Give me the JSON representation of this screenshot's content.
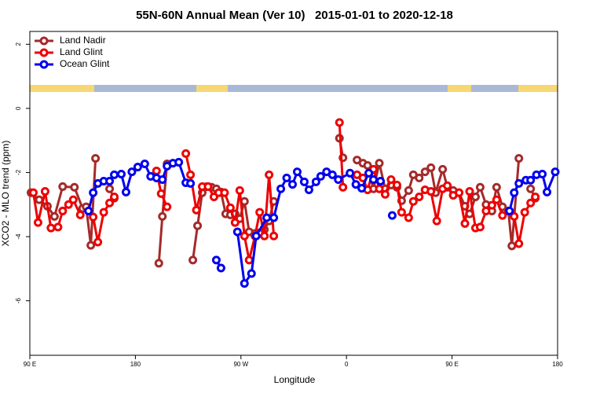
{
  "chart_data": {
    "type": "line",
    "title": "55N-60N Annual Mean (Ver 10)   2015-01-01 to 2020-12-18",
    "x_label": "Longitude",
    "y_label": "XCO2 - MLO trend (ppm)",
    "xlim": [
      90,
      540
    ],
    "ylim": [
      -7.7,
      2.4
    ],
    "xticks": [
      {
        "value": 90,
        "label": "90 E"
      },
      {
        "value": 180,
        "label": "180"
      },
      {
        "value": 270,
        "label": "90 W"
      },
      {
        "value": 360,
        "label": "0"
      },
      {
        "value": 450,
        "label": "90 E"
      },
      {
        "value": 540,
        "label": "180"
      }
    ],
    "yticks": [
      -6,
      -4,
      -2,
      0,
      2
    ],
    "legend": "top-left",
    "series": [
      {
        "name": "Land Nadir",
        "color": "#a52a2a",
        "x": [
          91,
          98,
          105,
          111,
          118,
          128,
          135,
          138,
          142,
          146,
          152,
          158,
          162,
          180,
          200,
          203,
          207,
          218,
          229,
          233,
          237,
          241,
          245,
          249,
          253,
          257,
          261,
          265,
          269,
          273,
          277,
          282,
          286,
          290,
          294,
          298,
          330,
          354,
          357,
          363,
          369,
          374,
          378,
          383,
          388,
          393,
          398,
          403,
          407,
          413,
          417,
          422,
          427,
          432,
          436,
          442,
          446,
          451,
          456,
          461,
          465,
          470,
          474,
          479,
          484,
          488,
          493,
          498,
          501,
          507,
          512,
          517,
          521
        ],
        "values": [
          -2.63,
          -2.85,
          -3.05,
          -3.37,
          -2.44,
          -2.46,
          -3.12,
          -3.07,
          -4.27,
          -1.56,
          null,
          -2.51,
          -2.8,
          null,
          -4.83,
          -3.37,
          -1.73,
          null,
          -4.73,
          -3.66,
          -2.63,
          -2.44,
          -2.46,
          -2.51,
          -2.61,
          -3.29,
          -3.32,
          -3.29,
          -3.44,
          -2.9,
          -3.85,
          -3.9,
          -3.88,
          -3.78,
          -3.51,
          -2.9,
          null,
          -0.93,
          -1.54,
          null,
          -1.61,
          -1.71,
          -1.78,
          -2.51,
          -1.71,
          -2.51,
          -2.39,
          -2.46,
          -2.88,
          -2.56,
          -2.07,
          -2.17,
          -1.98,
          -1.85,
          -2.63,
          -1.9,
          -2.46,
          -2.56,
          -2.63,
          -3.05,
          -3.29,
          -2.76,
          -2.46,
          -3.0,
          -3.2,
          -2.46,
          -3.07,
          -3.2,
          -4.29,
          -1.56,
          null,
          -2.51,
          -2.8
        ]
      },
      {
        "name": "Land Glint",
        "color": "#ee0000",
        "x": [
          93,
          97,
          103,
          108,
          114,
          118,
          123,
          127,
          133,
          138,
          144,
          148,
          153,
          158,
          162,
          180,
          198,
          202,
          207,
          215,
          223,
          227,
          232,
          237,
          242,
          247,
          251,
          256,
          261,
          265,
          269,
          273,
          277,
          282,
          286,
          290,
          294,
          298,
          330,
          354,
          357,
          363,
          369,
          374,
          378,
          383,
          388,
          393,
          398,
          403,
          407,
          413,
          417,
          422,
          427,
          432,
          437,
          442,
          446,
          451,
          456,
          461,
          465,
          470,
          474,
          479,
          484,
          488,
          493,
          498,
          503,
          507,
          512,
          517,
          521
        ],
        "values": [
          -2.63,
          -3.56,
          -2.59,
          -3.73,
          -3.7,
          -3.2,
          -3.0,
          -2.85,
          -3.32,
          null,
          -3.39,
          -4.17,
          -3.24,
          -2.95,
          -2.76,
          null,
          -1.95,
          -2.66,
          -3.07,
          null,
          -1.41,
          -2.07,
          -3.17,
          -2.44,
          -2.44,
          -2.76,
          -2.63,
          -2.63,
          -3.1,
          -3.56,
          -2.56,
          -3.98,
          -4.73,
          -3.98,
          -3.24,
          -3.98,
          -2.07,
          -3.98,
          null,
          -0.44,
          -2.46,
          null,
          -2.07,
          -2.17,
          -2.54,
          -1.9,
          -2.51,
          -2.68,
          -2.22,
          -2.39,
          -3.24,
          -3.41,
          -2.9,
          -2.76,
          -2.54,
          -2.59,
          -3.51,
          -2.51,
          -2.41,
          -2.71,
          -2.63,
          -3.59,
          -2.59,
          -3.73,
          -3.7,
          -3.2,
          -3.02,
          -2.85,
          -3.34,
          null,
          -3.37,
          -4.22,
          -3.24,
          -2.95,
          -2.76
        ]
      },
      {
        "name": "Ocean Glint",
        "color": "#0000ee",
        "x": [
          140,
          144,
          148,
          153,
          158,
          162,
          168,
          172,
          177,
          182,
          188,
          193,
          198,
          203,
          207,
          212,
          217,
          223,
          227,
          238,
          249,
          253,
          260,
          267,
          273,
          279,
          283,
          292,
          298,
          304,
          309,
          314,
          318,
          324,
          328,
          334,
          338,
          343,
          348,
          353,
          363,
          368,
          373,
          379,
          383,
          389,
          394,
          399,
          450,
          499,
          503,
          507,
          513,
          517,
          522,
          527,
          531,
          538
        ],
        "values": [
          -3.2,
          -2.63,
          -2.34,
          -2.27,
          -2.27,
          -2.07,
          -2.05,
          -2.61,
          -1.98,
          -1.83,
          -1.73,
          -2.12,
          -2.17,
          -2.22,
          -1.8,
          -1.71,
          -1.68,
          -2.32,
          -2.34,
          null,
          -4.73,
          -4.98,
          null,
          -3.85,
          -5.46,
          -5.15,
          -3.98,
          -3.41,
          -3.41,
          -2.51,
          -2.17,
          -2.37,
          -1.98,
          -2.29,
          -2.54,
          -2.29,
          -2.12,
          -1.98,
          -2.07,
          -2.22,
          -2.02,
          -2.37,
          -2.49,
          -2.02,
          -2.22,
          -2.27,
          null,
          -3.34,
          null,
          -3.2,
          -2.63,
          -2.34,
          -2.24,
          -2.24,
          -2.07,
          -2.05,
          -2.61,
          -1.98
        ]
      }
    ]
  }
}
